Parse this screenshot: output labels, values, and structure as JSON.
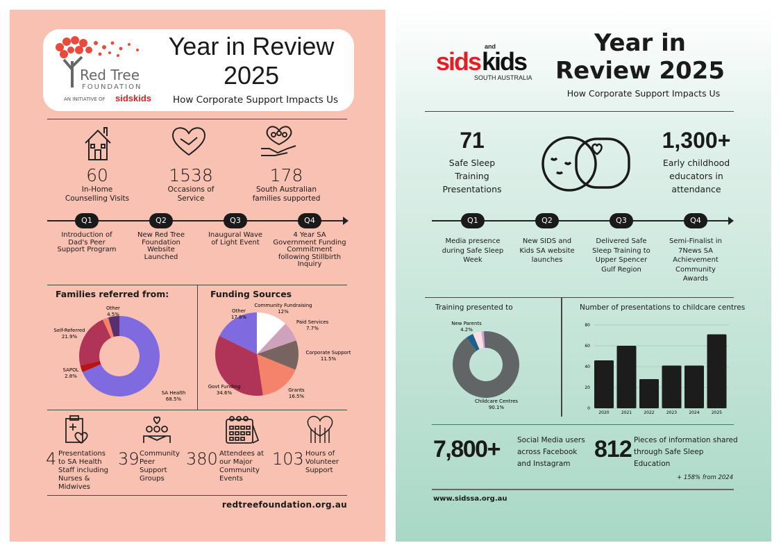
{
  "left": {
    "logo": {
      "name": "Red Tree",
      "sub": "FOUNDATION",
      "initiative": "AN INITIATIVE OF",
      "brand": "sidskids"
    },
    "title_line1": "Year in Review",
    "title_line2": "2025",
    "subtitle": "How Corporate Support Impacts Us",
    "stats": [
      {
        "icon": "house-icon",
        "value": "60",
        "label1": "In-Home",
        "label2": "Counselling Visits"
      },
      {
        "icon": "heart-hands-icon",
        "value": "1538",
        "label1": "Occasions of",
        "label2": "Service"
      },
      {
        "icon": "family-hand-icon",
        "value": "178",
        "label1": "South Australian",
        "label2": "families supported"
      }
    ],
    "timeline": [
      {
        "q": "Q1",
        "text": "Introduction of Dad's Peer Support Program"
      },
      {
        "q": "Q2",
        "text": "New Red Tree Foundation Website Launched"
      },
      {
        "q": "Q3",
        "text": "Inaugural Wave of Light Event"
      },
      {
        "q": "Q4",
        "text": "4 Year SA Government Funding Commitment following Stillbirth Inquiry"
      }
    ],
    "bottom": [
      {
        "icon": "clipboard-heart-icon",
        "value": "4",
        "label": "Presentations to SA Health Staff including Nurses & Midwives"
      },
      {
        "icon": "group-hug-icon",
        "value": "39",
        "label": "Community Peer Support Groups"
      },
      {
        "icon": "calendar-icon",
        "value": "380",
        "label": "Attendees at our Major Community Events"
      },
      {
        "icon": "raised-hands-icon",
        "value": "103",
        "label": "Hours of Volunteer Support"
      }
    ],
    "url": "redtreefoundation.org.au"
  },
  "right": {
    "logo": {
      "sids": "sids",
      "and": "and",
      "kids": "kids",
      "region": "SOUTH AUSTRALIA"
    },
    "title_line1": "Year in",
    "title_line2": "Review 2025",
    "subtitle": "How Corporate Support Impacts Us",
    "stat1": {
      "value": "71",
      "label1": "Safe Sleep",
      "label2": "Training",
      "label3": "Presentations"
    },
    "stat2": {
      "value": "1,300+",
      "label1": "Early childhood",
      "label2": "educators in",
      "label3": "attendance"
    },
    "timeline": [
      {
        "q": "Q1",
        "text": "Media presence during Safe Sleep Week"
      },
      {
        "q": "Q2",
        "text": "New SIDS and Kids SA website launches"
      },
      {
        "q": "Q3",
        "text": "Delivered Safe Sleep Training to Upper Spencer Gulf Region"
      },
      {
        "q": "Q4",
        "text": "Semi-Finalist in 7News SA Achievement Community Awards"
      }
    ],
    "social": {
      "value": "7,800+",
      "label": "Social Media users across Facebook and Instagram"
    },
    "info": {
      "value": "812",
      "label": "Pieces of information shared through Safe Sleep Education",
      "note": "+ 158% from 2024"
    },
    "url": "www.sidssa.org.au"
  },
  "chart_data": [
    {
      "type": "pie",
      "donut": true,
      "title": "Families referred from:",
      "slices": [
        {
          "label": "SA Health",
          "value": 68.5,
          "display": "68.5%",
          "color": "#7f6ae0"
        },
        {
          "label": "SAPOL",
          "value": 2.8,
          "display": "2.8%",
          "color": "#b81414"
        },
        {
          "label": "Self-Referred",
          "value": 21.9,
          "display": "21.9%",
          "color": "#b03358"
        },
        {
          "label": "",
          "value": 2.3,
          "display": "",
          "color": "#f5826a"
        },
        {
          "label": "Other",
          "value": 4.5,
          "display": "4.5%",
          "color": "#5b2e6e"
        }
      ]
    },
    {
      "type": "pie",
      "donut": false,
      "title": "Funding Sources",
      "slices": [
        {
          "label": "Community Fundraising",
          "value": 12,
          "display": "12%",
          "color": "#ffffff"
        },
        {
          "label": "Paid Services",
          "value": 7.7,
          "display": "7.7%",
          "color": "#cfa2bb"
        },
        {
          "label": "Corporate Support",
          "value": 11.5,
          "display": "11.5%",
          "color": "#776460"
        },
        {
          "label": "Grants",
          "value": 16.5,
          "display": "16.5%",
          "color": "#f5826a"
        },
        {
          "label": "Govt Funding",
          "value": 34.6,
          "display": "34.6%",
          "color": "#b03358"
        },
        {
          "label": "Other",
          "value": 17.8,
          "display": "17.8%",
          "color": "#7f6ae0"
        }
      ]
    },
    {
      "type": "pie",
      "donut": true,
      "title": "Training presented to",
      "slices": [
        {
          "label": "Childcare Centres",
          "value": 90.1,
          "display": "90.1%",
          "color": "#626566"
        },
        {
          "label": "",
          "value": 3.5,
          "display": "",
          "color": "#1f5f8c"
        },
        {
          "label": "New Parents",
          "value": 4.2,
          "display": "4.2%",
          "color": "#fbdde2"
        },
        {
          "label": "",
          "value": 1.2,
          "display": "",
          "color": "#c9a7c6"
        },
        {
          "label": "",
          "value": 1.0,
          "display": "",
          "color": "#6d5a75"
        }
      ]
    },
    {
      "type": "bar",
      "title": "Number of presentations to childcare centres",
      "categories": [
        "2020",
        "2021",
        "2022",
        "2023",
        "2024",
        "2025"
      ],
      "values": [
        46,
        60,
        28,
        41,
        41,
        71
      ],
      "ylim": [
        0,
        80
      ],
      "yticks": [
        0,
        20,
        40,
        60,
        80
      ],
      "grid": true,
      "color": "#1c1c1c"
    }
  ]
}
